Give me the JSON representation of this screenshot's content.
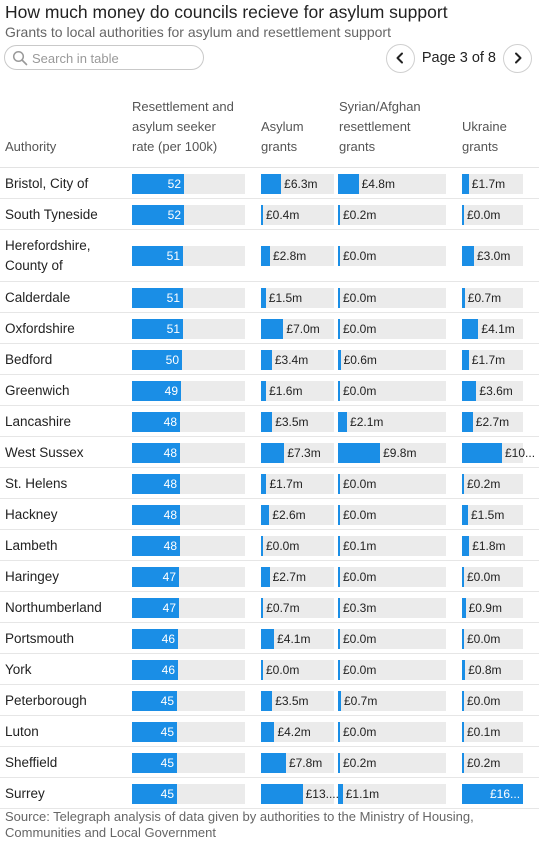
{
  "title": "How much money do councils recieve for asylum support",
  "subtitle": "Grants to local authorities for asylum and resettlement support",
  "search": {
    "placeholder": "Search in table",
    "icon": "search-icon"
  },
  "pagination": {
    "label": "Page 3 of 8",
    "prev_icon": "chevron-left-icon",
    "next_icon": "chevron-right-icon"
  },
  "columns": {
    "authority": "Authority",
    "rate": [
      "Resettlement and",
      "asylum seeker",
      "rate (per 100k)"
    ],
    "asylum": [
      "Asylum",
      "grants"
    ],
    "syrian": [
      "Syrian/Afghan",
      "resettlement",
      "grants"
    ],
    "ukraine": [
      "Ukraine",
      "grants"
    ]
  },
  "colors": {
    "bar": "#1a8ee6",
    "track": "#ebebeb"
  },
  "rows": [
    {
      "authority": [
        "Bristol, City of"
      ],
      "rate": 52,
      "asylum": "£6.3m",
      "asylum_m": 6.3,
      "syrian": "£4.8m",
      "syrian_m": 4.8,
      "ukraine": "£1.7m",
      "ukraine_m": 1.7
    },
    {
      "authority": [
        "South Tyneside"
      ],
      "rate": 52,
      "asylum": "£0.4m",
      "asylum_m": 0.4,
      "syrian": "£0.2m",
      "syrian_m": 0.2,
      "ukraine": "£0.0m",
      "ukraine_m": 0.0
    },
    {
      "authority": [
        "Herefordshire,",
        "County of"
      ],
      "rate": 51,
      "asylum": "£2.8m",
      "asylum_m": 2.8,
      "syrian": "£0.0m",
      "syrian_m": 0.0,
      "ukraine": "£3.0m",
      "ukraine_m": 3.0
    },
    {
      "authority": [
        "Calderdale"
      ],
      "rate": 51,
      "asylum": "£1.5m",
      "asylum_m": 1.5,
      "syrian": "£0.0m",
      "syrian_m": 0.0,
      "ukraine": "£0.7m",
      "ukraine_m": 0.7
    },
    {
      "authority": [
        "Oxfordshire"
      ],
      "rate": 51,
      "asylum": "£7.0m",
      "asylum_m": 7.0,
      "syrian": "£0.0m",
      "syrian_m": 0.0,
      "ukraine": "£4.1m",
      "ukraine_m": 4.1
    },
    {
      "authority": [
        "Bedford"
      ],
      "rate": 50,
      "asylum": "£3.4m",
      "asylum_m": 3.4,
      "syrian": "£0.6m",
      "syrian_m": 0.6,
      "ukraine": "£1.7m",
      "ukraine_m": 1.7
    },
    {
      "authority": [
        "Greenwich"
      ],
      "rate": 49,
      "asylum": "£1.6m",
      "asylum_m": 1.6,
      "syrian": "£0.0m",
      "syrian_m": 0.0,
      "ukraine": "£3.6m",
      "ukraine_m": 3.6
    },
    {
      "authority": [
        "Lancashire"
      ],
      "rate": 48,
      "asylum": "£3.5m",
      "asylum_m": 3.5,
      "syrian": "£2.1m",
      "syrian_m": 2.1,
      "ukraine": "£2.7m",
      "ukraine_m": 2.7
    },
    {
      "authority": [
        "West Sussex"
      ],
      "rate": 48,
      "asylum": "£7.3m",
      "asylum_m": 7.3,
      "syrian": "£9.8m",
      "syrian_m": 9.8,
      "ukraine": "£10...",
      "ukraine_m": 10.0
    },
    {
      "authority": [
        "St. Helens"
      ],
      "rate": 48,
      "asylum": "£1.7m",
      "asylum_m": 1.7,
      "syrian": "£0.0m",
      "syrian_m": 0.0,
      "ukraine": "£0.2m",
      "ukraine_m": 0.2
    },
    {
      "authority": [
        "Hackney"
      ],
      "rate": 48,
      "asylum": "£2.6m",
      "asylum_m": 2.6,
      "syrian": "£0.0m",
      "syrian_m": 0.0,
      "ukraine": "£1.5m",
      "ukraine_m": 1.5
    },
    {
      "authority": [
        "Lambeth"
      ],
      "rate": 48,
      "asylum": "£0.0m",
      "asylum_m": 0.0,
      "syrian": "£0.1m",
      "syrian_m": 0.1,
      "ukraine": "£1.8m",
      "ukraine_m": 1.8
    },
    {
      "authority": [
        "Haringey"
      ],
      "rate": 47,
      "asylum": "£2.7m",
      "asylum_m": 2.7,
      "syrian": "£0.0m",
      "syrian_m": 0.0,
      "ukraine": "£0.0m",
      "ukraine_m": 0.0
    },
    {
      "authority": [
        "Northumberland"
      ],
      "rate": 47,
      "asylum": "£0.7m",
      "asylum_m": 0.7,
      "syrian": "£0.3m",
      "syrian_m": 0.3,
      "ukraine": "£0.9m",
      "ukraine_m": 0.9
    },
    {
      "authority": [
        "Portsmouth"
      ],
      "rate": 46,
      "asylum": "£4.1m",
      "asylum_m": 4.1,
      "syrian": "£0.0m",
      "syrian_m": 0.0,
      "ukraine": "£0.0m",
      "ukraine_m": 0.0
    },
    {
      "authority": [
        "York"
      ],
      "rate": 46,
      "asylum": "£0.0m",
      "asylum_m": 0.0,
      "syrian": "£0.0m",
      "syrian_m": 0.0,
      "ukraine": "£0.8m",
      "ukraine_m": 0.8
    },
    {
      "authority": [
        "Peterborough"
      ],
      "rate": 45,
      "asylum": "£3.5m",
      "asylum_m": 3.5,
      "syrian": "£0.7m",
      "syrian_m": 0.7,
      "ukraine": "£0.0m",
      "ukraine_m": 0.0
    },
    {
      "authority": [
        "Luton"
      ],
      "rate": 45,
      "asylum": "£4.2m",
      "asylum_m": 4.2,
      "syrian": "£0.0m",
      "syrian_m": 0.0,
      "ukraine": "£0.1m",
      "ukraine_m": 0.1
    },
    {
      "authority": [
        "Sheffield"
      ],
      "rate": 45,
      "asylum": "£7.8m",
      "asylum_m": 7.8,
      "syrian": "£0.2m",
      "syrian_m": 0.2,
      "ukraine": "£0.2m",
      "ukraine_m": 0.2
    },
    {
      "authority": [
        "Surrey"
      ],
      "rate": 45,
      "asylum": "£13....",
      "asylum_m": 13.0,
      "syrian": "£1.1m",
      "syrian_m": 1.1,
      "ukraine": "£16....",
      "ukraine_m": 16.0
    }
  ],
  "source": "Source: Telegraph analysis of data given by authorities to the Ministry of Housing, Communities and Local Government"
}
